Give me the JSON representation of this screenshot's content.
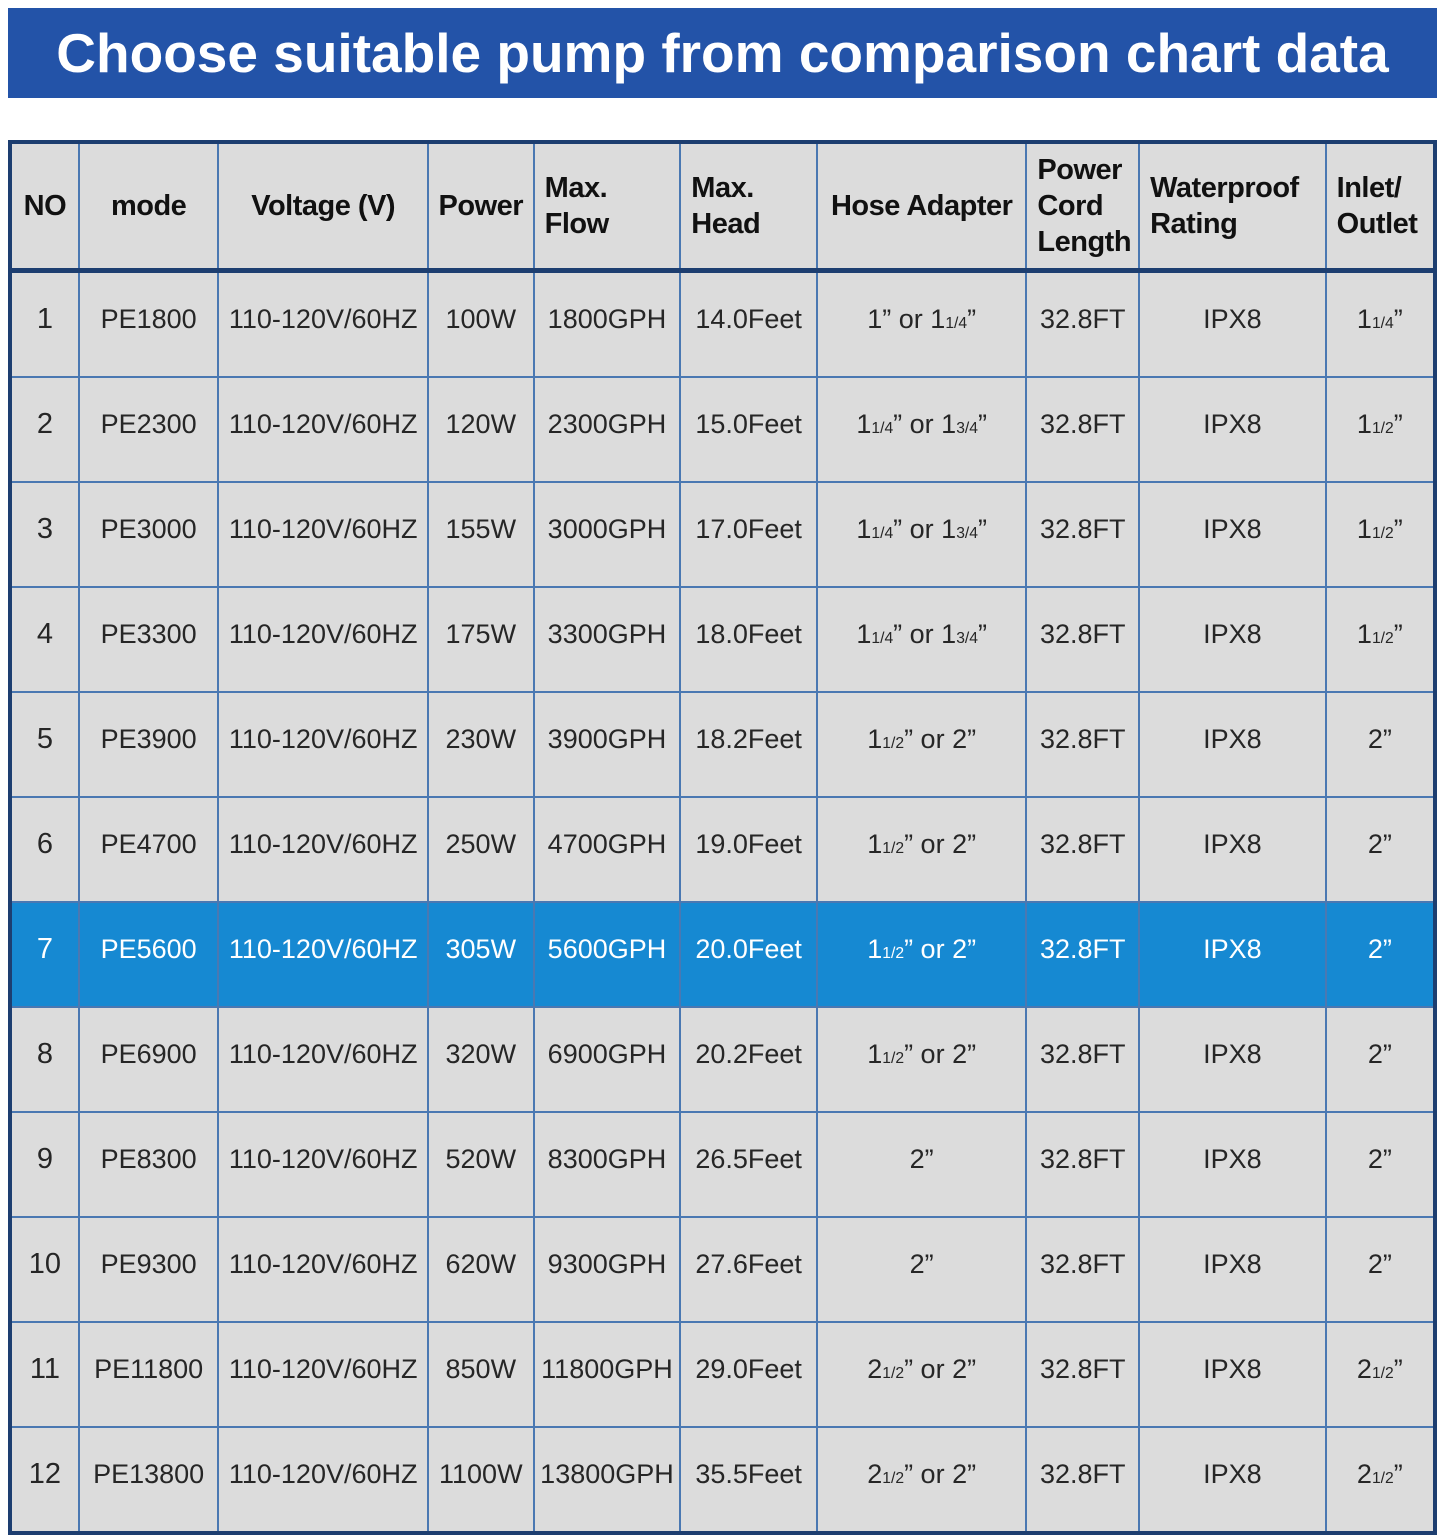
{
  "banner": {
    "title": "Choose suitable pump from comparison chart data"
  },
  "colors": {
    "banner_bg": "#2353a8",
    "banner_fg": "#ffffff",
    "page_bg": "#ffffff",
    "cell_bg": "#dcdcdc",
    "highlight_bg": "#1689d2",
    "highlight_fg": "#ffffff",
    "grid_line": "#4a78b2",
    "outer_border": "#1d3e70",
    "text": "#262626"
  },
  "chart_data": {
    "type": "table",
    "title": "Choose suitable pump from comparison chart data",
    "columns": [
      "NO",
      "mode",
      "Voltage (V)",
      "Power",
      "Max.\nFlow",
      "Max.\nHead",
      "Hose Adapter",
      "Power\nCord\nLength",
      "Waterproof\nRating",
      "Inlet/\nOutlet"
    ],
    "highlighted_row": 7,
    "rows": [
      [
        "1",
        "PE1800",
        "110-120V/60HZ",
        "100W",
        "1800GPH",
        "14.0Feet",
        "1” or 1[1/4]”",
        "32.8FT",
        "IPX8",
        "1[1/4]”"
      ],
      [
        "2",
        "PE2300",
        "110-120V/60HZ",
        "120W",
        "2300GPH",
        "15.0Feet",
        "1[1/4]” or 1[3/4]”",
        "32.8FT",
        "IPX8",
        "1[1/2]”"
      ],
      [
        "3",
        "PE3000",
        "110-120V/60HZ",
        "155W",
        "3000GPH",
        "17.0Feet",
        "1[1/4]” or 1[3/4]”",
        "32.8FT",
        "IPX8",
        "1[1/2]”"
      ],
      [
        "4",
        "PE3300",
        "110-120V/60HZ",
        "175W",
        "3300GPH",
        "18.0Feet",
        "1[1/4]” or 1[3/4]”",
        "32.8FT",
        "IPX8",
        "1[1/2]”"
      ],
      [
        "5",
        "PE3900",
        "110-120V/60HZ",
        "230W",
        "3900GPH",
        "18.2Feet",
        "1[1/2]” or 2”",
        "32.8FT",
        "IPX8",
        "2”"
      ],
      [
        "6",
        "PE4700",
        "110-120V/60HZ",
        "250W",
        "4700GPH",
        "19.0Feet",
        "1[1/2]” or 2”",
        "32.8FT",
        "IPX8",
        "2”"
      ],
      [
        "7",
        "PE5600",
        "110-120V/60HZ",
        "305W",
        "5600GPH",
        "20.0Feet",
        "1[1/2]” or 2”",
        "32.8FT",
        "IPX8",
        "2”"
      ],
      [
        "8",
        "PE6900",
        "110-120V/60HZ",
        "320W",
        "6900GPH",
        "20.2Feet",
        "1[1/2]” or 2”",
        "32.8FT",
        "IPX8",
        "2”"
      ],
      [
        "9",
        "PE8300",
        "110-120V/60HZ",
        "520W",
        "8300GPH",
        "26.5Feet",
        "2”",
        "32.8FT",
        "IPX8",
        "2”"
      ],
      [
        "10",
        "PE9300",
        "110-120V/60HZ",
        "620W",
        "9300GPH",
        "27.6Feet",
        "2”",
        "32.8FT",
        "IPX8",
        "2”"
      ],
      [
        "11",
        "PE11800",
        "110-120V/60HZ",
        "850W",
        "11800GPH",
        "29.0Feet",
        "2[1/2]” or 2”",
        "32.8FT",
        "IPX8",
        "2[1/2]”"
      ],
      [
        "12",
        "PE13800",
        "110-120V/60HZ",
        "1100W",
        "13800GPH",
        "35.5Feet",
        "2[1/2]” or 2”",
        "32.8FT",
        "IPX8",
        "2[1/2]”"
      ]
    ]
  }
}
